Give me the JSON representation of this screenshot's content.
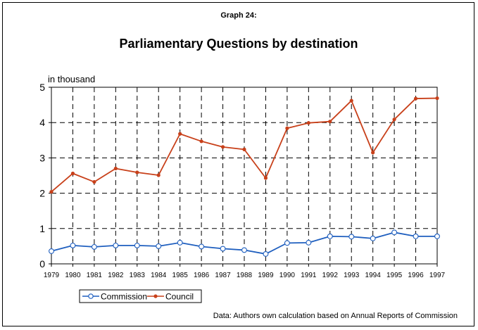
{
  "figure": {
    "label": "Graph 24:",
    "source_note": "Data: Authors own calculation based on Annual Reports of Commission"
  },
  "chart_data": {
    "type": "line",
    "title": "Parliamentary Questions by destination",
    "ylabel": "in thousand",
    "xlabel": "",
    "ylim": [
      0,
      5
    ],
    "yticks": [
      "0",
      "1",
      "2",
      "3",
      "4",
      "5"
    ],
    "grid": true,
    "legend_position": "bottom-left",
    "x": [
      "1979",
      "1980",
      "1981",
      "1982",
      "1983",
      "1984",
      "1985",
      "1986",
      "1987",
      "1988",
      "1989",
      "1990",
      "1991",
      "1992",
      "1993",
      "1994",
      "1995",
      "1996",
      "1997"
    ],
    "series": [
      {
        "name": "Commission",
        "color": "#1f5fbf",
        "marker": "open-circle",
        "values": [
          0.36,
          0.52,
          0.48,
          0.52,
          0.52,
          0.5,
          0.6,
          0.49,
          0.43,
          0.39,
          0.28,
          0.59,
          0.6,
          0.78,
          0.77,
          0.72,
          0.89,
          0.78,
          0.78
        ]
      },
      {
        "name": "Council",
        "color": "#c8401a",
        "marker": "filled-dot",
        "values": [
          2.04,
          2.56,
          2.32,
          2.7,
          2.59,
          2.51,
          3.68,
          3.47,
          3.31,
          3.24,
          2.43,
          3.84,
          3.99,
          4.03,
          4.62,
          3.15,
          4.09,
          4.68,
          4.69
        ]
      }
    ]
  }
}
